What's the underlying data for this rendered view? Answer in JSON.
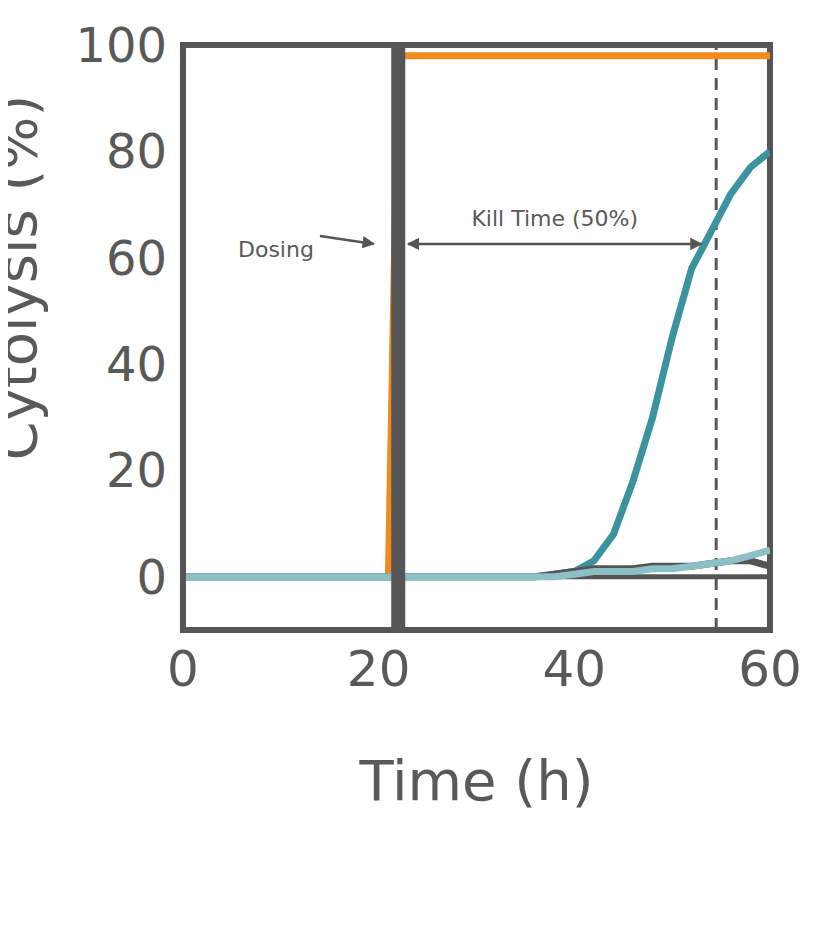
{
  "chart_data": {
    "type": "line",
    "x_label": "Time (h)",
    "y_label": "Cytolysis (%)",
    "x": [
      0,
      4,
      8,
      12,
      16,
      20,
      21,
      22,
      24,
      28,
      32,
      36,
      38,
      40,
      42,
      44,
      46,
      48,
      50,
      52,
      54,
      56,
      58,
      60
    ],
    "series": [
      {
        "color": "#f28a1c",
        "values": [
          0,
          0,
          0,
          0,
          0,
          0,
          0,
          98,
          98,
          98,
          98,
          98,
          98,
          98,
          98,
          98,
          98,
          98,
          98,
          98,
          98,
          98,
          98,
          98
        ]
      },
      {
        "color": "#3a939e",
        "values": [
          0,
          0,
          0,
          0,
          0,
          0,
          0,
          0,
          0,
          0,
          0,
          0,
          0.5,
          1,
          3,
          8,
          18,
          30,
          45,
          58,
          65,
          72,
          77,
          80
        ]
      },
      {
        "color": "#555555",
        "values": [
          0,
          0,
          0,
          0,
          0,
          0,
          0,
          0,
          0,
          0,
          0,
          0,
          0.5,
          1,
          1.5,
          1.5,
          1.5,
          2,
          2,
          2,
          2.5,
          3,
          3,
          2
        ]
      },
      {
        "color": "#8cbfc6",
        "values": [
          0,
          0,
          0,
          0,
          0,
          0,
          0,
          0,
          0,
          0,
          0,
          0,
          0,
          0.5,
          1,
          1,
          1,
          1.5,
          1.5,
          2,
          2.5,
          3,
          4,
          5
        ]
      }
    ],
    "xlim": [
      0,
      60
    ],
    "xticks": [
      0,
      20,
      40,
      60
    ],
    "ylim": [
      -10,
      100
    ],
    "yticks": [
      0,
      20,
      40,
      60,
      80,
      100
    ],
    "grid": false,
    "legend": "none",
    "annotations": [
      {
        "text": "Dosing",
        "x": 22
      },
      {
        "text": "Kill Time (50%)",
        "x": 54.5
      }
    ]
  }
}
